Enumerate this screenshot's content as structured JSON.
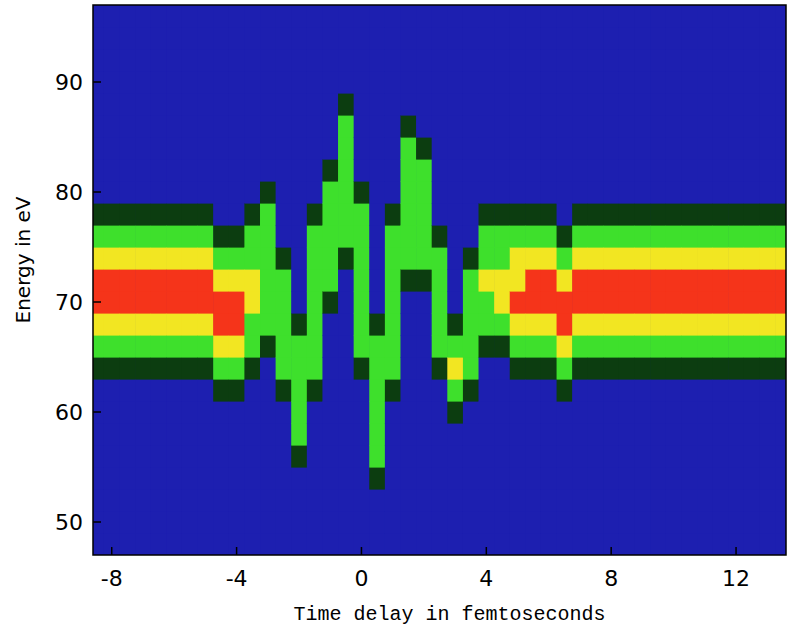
{
  "chart_data": {
    "type": "heatmap",
    "x_label": "Time delay in femtoseconds",
    "y_label": "Energy in eV",
    "xlim": [
      -8.6,
      13.6
    ],
    "ylim": [
      47,
      97
    ],
    "xticks": [
      -8,
      -4,
      0,
      4,
      8,
      12
    ],
    "yticks": [
      50,
      60,
      70,
      80,
      90
    ],
    "colors": [
      "#1d1fb0",
      "#0c3d10",
      "#3ee02c",
      "#f2e622",
      "#f5341a"
    ],
    "x": [
      -8.5,
      -8,
      -7.5,
      -7,
      -6.5,
      -6,
      -5.5,
      -5,
      -4.5,
      -4,
      -3.5,
      -3,
      -2.5,
      -2,
      -1.5,
      -1,
      -0.5,
      0,
      0.5,
      1,
      1.5,
      2,
      2.5,
      3,
      3.5,
      4,
      4.5,
      5,
      5.5,
      6,
      6.5,
      7,
      7.5,
      8,
      8.5,
      9,
      9.5,
      10,
      10.5,
      11,
      11.5,
      12,
      12.5,
      13,
      13.5
    ],
    "y": [
      48,
      50,
      52,
      54,
      56,
      58,
      60,
      62,
      64,
      66,
      68,
      70,
      72,
      74,
      76,
      78,
      80,
      82,
      84,
      86,
      88,
      90,
      92,
      94,
      96
    ],
    "cells": [
      [
        0,
        0,
        0,
        0,
        0,
        0,
        0,
        0,
        1,
        2,
        3,
        4,
        4,
        3,
        2,
        1,
        0,
        0,
        0,
        0,
        0,
        0,
        0,
        0,
        0
      ],
      [
        0,
        0,
        0,
        0,
        0,
        0,
        0,
        0,
        1,
        2,
        3,
        4,
        4,
        3,
        2,
        1,
        0,
        0,
        0,
        0,
        0,
        0,
        0,
        0,
        0
      ],
      [
        0,
        0,
        0,
        0,
        0,
        0,
        0,
        0,
        1,
        2,
        3,
        4,
        4,
        3,
        2,
        1,
        0,
        0,
        0,
        0,
        0,
        0,
        0,
        0,
        0
      ],
      [
        0,
        0,
        0,
        0,
        0,
        0,
        0,
        0,
        1,
        2,
        3,
        4,
        4,
        3,
        2,
        1,
        0,
        0,
        0,
        0,
        0,
        0,
        0,
        0,
        0
      ],
      [
        0,
        0,
        0,
        0,
        0,
        0,
        0,
        0,
        1,
        2,
        3,
        4,
        4,
        3,
        2,
        1,
        0,
        0,
        0,
        0,
        0,
        0,
        0,
        0,
        0
      ],
      [
        0,
        0,
        0,
        0,
        0,
        0,
        0,
        0,
        1,
        2,
        3,
        4,
        4,
        3,
        2,
        1,
        0,
        0,
        0,
        0,
        0,
        0,
        0,
        0,
        0
      ],
      [
        0,
        0,
        0,
        0,
        0,
        0,
        0,
        0,
        1,
        2,
        3,
        4,
        4,
        3,
        2,
        1,
        0,
        0,
        0,
        0,
        0,
        0,
        0,
        0,
        0
      ],
      [
        0,
        0,
        0,
        0,
        0,
        0,
        0,
        0,
        1,
        2,
        3,
        4,
        4,
        3,
        2,
        1,
        0,
        0,
        0,
        0,
        0,
        0,
        0,
        0,
        0
      ],
      [
        0,
        0,
        0,
        0,
        0,
        0,
        0,
        1,
        2,
        3,
        4,
        4,
        3,
        2,
        1,
        0,
        0,
        0,
        0,
        0,
        0,
        0,
        0,
        0,
        0
      ],
      [
        0,
        0,
        0,
        0,
        0,
        0,
        0,
        1,
        2,
        3,
        4,
        4,
        3,
        2,
        1,
        0,
        0,
        0,
        0,
        0,
        0,
        0,
        0,
        0,
        0
      ],
      [
        0,
        0,
        0,
        0,
        0,
        0,
        0,
        0,
        1,
        2,
        2,
        3,
        3,
        2,
        2,
        1,
        0,
        0,
        0,
        0,
        0,
        0,
        0,
        0,
        0
      ],
      [
        0,
        0,
        0,
        0,
        0,
        0,
        0,
        0,
        0,
        1,
        2,
        2,
        2,
        2,
        2,
        2,
        1,
        0,
        0,
        0,
        0,
        0,
        0,
        0,
        0
      ],
      [
        0,
        0,
        0,
        0,
        0,
        0,
        0,
        1,
        2,
        2,
        2,
        2,
        2,
        1,
        0,
        0,
        0,
        0,
        0,
        0,
        0,
        0,
        0,
        0,
        0
      ],
      [
        0,
        0,
        0,
        0,
        1,
        2,
        2,
        2,
        2,
        2,
        1,
        0,
        0,
        0,
        0,
        0,
        0,
        0,
        0,
        0,
        0,
        0,
        0,
        0,
        0
      ],
      [
        0,
        0,
        0,
        0,
        0,
        0,
        0,
        1,
        2,
        2,
        2,
        2,
        2,
        2,
        2,
        1,
        0,
        0,
        0,
        0,
        0,
        0,
        0,
        0,
        0
      ],
      [
        0,
        0,
        0,
        0,
        0,
        0,
        0,
        0,
        0,
        0,
        0,
        1,
        2,
        2,
        2,
        2,
        2,
        1,
        0,
        0,
        0,
        0,
        0,
        0,
        0
      ],
      [
        0,
        0,
        0,
        0,
        0,
        0,
        0,
        0,
        0,
        0,
        0,
        0,
        0,
        1,
        2,
        2,
        2,
        2,
        2,
        2,
        1,
        0,
        0,
        0,
        0
      ],
      [
        0,
        0,
        0,
        0,
        0,
        0,
        0,
        0,
        1,
        2,
        2,
        2,
        2,
        2,
        2,
        2,
        1,
        0,
        0,
        0,
        0,
        0,
        0,
        0,
        0
      ],
      [
        0,
        0,
        0,
        1,
        2,
        2,
        2,
        2,
        2,
        2,
        1,
        0,
        0,
        0,
        0,
        0,
        0,
        0,
        0,
        0,
        0,
        0,
        0,
        0,
        0
      ],
      [
        0,
        0,
        0,
        0,
        0,
        0,
        0,
        1,
        2,
        2,
        2,
        2,
        2,
        2,
        2,
        1,
        0,
        0,
        0,
        0,
        0,
        0,
        0,
        0,
        0
      ],
      [
        0,
        0,
        0,
        0,
        0,
        0,
        0,
        0,
        0,
        0,
        0,
        0,
        1,
        2,
        2,
        2,
        2,
        2,
        2,
        1,
        0,
        0,
        0,
        0,
        0
      ],
      [
        0,
        0,
        0,
        0,
        0,
        0,
        0,
        0,
        0,
        0,
        0,
        0,
        1,
        2,
        2,
        2,
        2,
        2,
        1,
        0,
        0,
        0,
        0,
        0,
        0
      ],
      [
        0,
        0,
        0,
        0,
        0,
        0,
        0,
        0,
        1,
        2,
        2,
        2,
        2,
        2,
        1,
        0,
        0,
        0,
        0,
        0,
        0,
        0,
        0,
        0,
        0
      ],
      [
        0,
        0,
        0,
        0,
        0,
        0,
        1,
        2,
        3,
        2,
        1,
        0,
        0,
        0,
        0,
        0,
        0,
        0,
        0,
        0,
        0,
        0,
        0,
        0,
        0
      ],
      [
        0,
        0,
        0,
        0,
        0,
        0,
        0,
        1,
        2,
        2,
        2,
        2,
        2,
        1,
        0,
        0,
        0,
        0,
        0,
        0,
        0,
        0,
        0,
        0,
        0
      ],
      [
        0,
        0,
        0,
        0,
        0,
        0,
        0,
        0,
        0,
        1,
        2,
        2,
        3,
        2,
        2,
        1,
        0,
        0,
        0,
        0,
        0,
        0,
        0,
        0,
        0
      ],
      [
        0,
        0,
        0,
        0,
        0,
        0,
        0,
        0,
        0,
        1,
        2,
        3,
        3,
        2,
        2,
        1,
        0,
        0,
        0,
        0,
        0,
        0,
        0,
        0,
        0
      ],
      [
        0,
        0,
        0,
        0,
        0,
        0,
        0,
        0,
        1,
        2,
        3,
        4,
        3,
        3,
        2,
        1,
        0,
        0,
        0,
        0,
        0,
        0,
        0,
        0,
        0
      ],
      [
        0,
        0,
        0,
        0,
        0,
        0,
        0,
        0,
        1,
        2,
        3,
        4,
        4,
        3,
        2,
        1,
        0,
        0,
        0,
        0,
        0,
        0,
        0,
        0,
        0
      ],
      [
        0,
        0,
        0,
        0,
        0,
        0,
        0,
        0,
        1,
        2,
        3,
        4,
        4,
        3,
        2,
        1,
        0,
        0,
        0,
        0,
        0,
        0,
        0,
        0,
        0
      ],
      [
        0,
        0,
        0,
        0,
        0,
        0,
        0,
        1,
        2,
        3,
        4,
        4,
        3,
        2,
        1,
        0,
        0,
        0,
        0,
        0,
        0,
        0,
        0,
        0,
        0
      ],
      [
        0,
        0,
        0,
        0,
        0,
        0,
        0,
        0,
        1,
        2,
        3,
        4,
        4,
        3,
        2,
        1,
        0,
        0,
        0,
        0,
        0,
        0,
        0,
        0,
        0
      ],
      [
        0,
        0,
        0,
        0,
        0,
        0,
        0,
        0,
        1,
        2,
        3,
        4,
        4,
        3,
        2,
        1,
        0,
        0,
        0,
        0,
        0,
        0,
        0,
        0,
        0
      ],
      [
        0,
        0,
        0,
        0,
        0,
        0,
        0,
        0,
        1,
        2,
        3,
        4,
        4,
        3,
        2,
        1,
        0,
        0,
        0,
        0,
        0,
        0,
        0,
        0,
        0
      ],
      [
        0,
        0,
        0,
        0,
        0,
        0,
        0,
        0,
        1,
        2,
        3,
        4,
        4,
        3,
        2,
        1,
        0,
        0,
        0,
        0,
        0,
        0,
        0,
        0,
        0
      ],
      [
        0,
        0,
        0,
        0,
        0,
        0,
        0,
        0,
        1,
        2,
        3,
        4,
        4,
        3,
        2,
        1,
        0,
        0,
        0,
        0,
        0,
        0,
        0,
        0,
        0
      ],
      [
        0,
        0,
        0,
        0,
        0,
        0,
        0,
        0,
        1,
        2,
        3,
        4,
        4,
        3,
        2,
        1,
        0,
        0,
        0,
        0,
        0,
        0,
        0,
        0,
        0
      ],
      [
        0,
        0,
        0,
        0,
        0,
        0,
        0,
        0,
        1,
        2,
        3,
        4,
        4,
        3,
        2,
        1,
        0,
        0,
        0,
        0,
        0,
        0,
        0,
        0,
        0
      ],
      [
        0,
        0,
        0,
        0,
        0,
        0,
        0,
        0,
        1,
        2,
        3,
        4,
        4,
        3,
        2,
        1,
        0,
        0,
        0,
        0,
        0,
        0,
        0,
        0,
        0
      ],
      [
        0,
        0,
        0,
        0,
        0,
        0,
        0,
        0,
        1,
        2,
        3,
        4,
        4,
        3,
        2,
        1,
        0,
        0,
        0,
        0,
        0,
        0,
        0,
        0,
        0
      ],
      [
        0,
        0,
        0,
        0,
        0,
        0,
        0,
        0,
        1,
        2,
        3,
        4,
        4,
        3,
        2,
        1,
        0,
        0,
        0,
        0,
        0,
        0,
        0,
        0,
        0
      ],
      [
        0,
        0,
        0,
        0,
        0,
        0,
        0,
        0,
        1,
        2,
        3,
        4,
        4,
        3,
        2,
        1,
        0,
        0,
        0,
        0,
        0,
        0,
        0,
        0,
        0
      ],
      [
        0,
        0,
        0,
        0,
        0,
        0,
        0,
        0,
        1,
        2,
        3,
        4,
        4,
        3,
        2,
        1,
        0,
        0,
        0,
        0,
        0,
        0,
        0,
        0,
        0
      ],
      [
        0,
        0,
        0,
        0,
        0,
        0,
        0,
        0,
        1,
        2,
        3,
        4,
        4,
        3,
        2,
        1,
        0,
        0,
        0,
        0,
        0,
        0,
        0,
        0,
        0
      ],
      [
        0,
        0,
        0,
        0,
        0,
        0,
        0,
        0,
        1,
        2,
        3,
        4,
        4,
        3,
        2,
        1,
        0,
        0,
        0,
        0,
        0,
        0,
        0,
        0,
        0
      ]
    ]
  }
}
